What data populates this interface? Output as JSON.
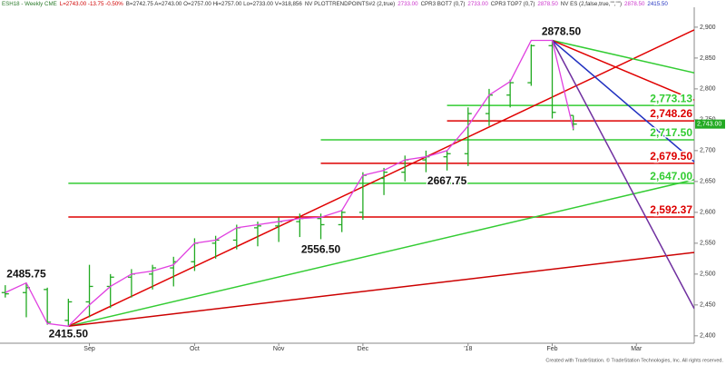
{
  "chart_data": {
    "type": "ohlc",
    "header": [
      {
        "text": "ESH18 - Weekly CME",
        "color": "#2a7a2a"
      },
      {
        "text": "L=2743.00 -13.75 -0.50%",
        "color": "#d00000"
      },
      {
        "text": "B=2742.75 A=2743.00 O=2757.00 Hi=2757.00 Lo=2733.00 V=318,856",
        "color": "#333333"
      },
      {
        "text": "NV PLOTTRENDPOINTS#2 (2,true)",
        "color": "#333333"
      },
      {
        "text": "2733.00",
        "color": "#cc33cc"
      },
      {
        "text": "CPR3 BOT7 (0,7)",
        "color": "#333333"
      },
      {
        "text": "2733.00",
        "color": "#cc33cc"
      },
      {
        "text": "CPR3 TOP7 (0,7)",
        "color": "#333333"
      },
      {
        "text": "2878.50",
        "color": "#cc33cc"
      },
      {
        "text": "NV ES (2,false,true,\"\",\"\")",
        "color": "#333333"
      },
      {
        "text": "2878.50",
        "color": "#cc33cc"
      },
      {
        "text": "2415.50",
        "color": "#2030c0"
      }
    ],
    "footer": "Created with TradeStation. © TradeStation Technologies, Inc. All rights reserved.",
    "xlim": [
      -0.25,
      32.75
    ],
    "xticks": [
      {
        "value": 4,
        "label": "Sep"
      },
      {
        "value": 9,
        "label": "Oct"
      },
      {
        "value": 13,
        "label": "Nov"
      },
      {
        "value": 17,
        "label": "Dec"
      },
      {
        "value": 22,
        "label": "'18"
      },
      {
        "value": 26,
        "label": "Feb"
      },
      {
        "value": 30,
        "label": "Mar"
      }
    ],
    "ylim": [
      2388,
      2944
    ],
    "yticks": [
      {
        "value": 2400,
        "label": "2,400"
      },
      {
        "value": 2450,
        "label": "2,450"
      },
      {
        "value": 2500,
        "label": "2,500"
      },
      {
        "value": 2550,
        "label": "2,550"
      },
      {
        "value": 2600,
        "label": "2,600"
      },
      {
        "value": 2650,
        "label": "2,650"
      },
      {
        "value": 2700,
        "label": "2,700"
      },
      {
        "value": 2750,
        "label": "2,750"
      },
      {
        "value": 2800,
        "label": "2,800"
      },
      {
        "value": 2850,
        "label": "2,850"
      },
      {
        "value": 2900,
        "label": "2,900"
      }
    ],
    "bar_color": "#22aa22",
    "open": [
      2470,
      2470,
      2475,
      2425,
      2455,
      2480,
      2495,
      2500,
      2510,
      2520,
      2550,
      2555,
      2575,
      2578,
      2585,
      2590,
      2580,
      2600,
      2655,
      2665,
      2685,
      2690,
      2695,
      2760,
      2790,
      2810,
      2870,
      2757
    ],
    "high": [
      2482,
      2485.75,
      2478,
      2460,
      2515,
      2500,
      2508,
      2515,
      2528,
      2558,
      2562,
      2580,
      2585,
      2592,
      2598,
      2598,
      2604,
      2665,
      2672,
      2692,
      2700,
      2700,
      2770,
      2800,
      2815,
      2872,
      2878.5,
      2757
    ],
    "low": [
      2462,
      2430,
      2418,
      2415.5,
      2430,
      2445,
      2462,
      2475,
      2480,
      2505,
      2525,
      2540,
      2545,
      2552,
      2560,
      2556.5,
      2568,
      2588,
      2628,
      2650,
      2665,
      2667.75,
      2675,
      2740,
      2770,
      2805,
      2752,
      2733
    ],
    "close": [
      2468,
      2478,
      2422,
      2455,
      2480,
      2495,
      2500,
      2510,
      2520,
      2550,
      2555,
      2575,
      2578,
      2585,
      2590,
      2580,
      2600,
      2660,
      2665,
      2685,
      2690,
      2695,
      2760,
      2790,
      2810,
      2870,
      2762,
      2743
    ],
    "line_color": "#e040e0",
    "line_values": [
      2470,
      2485.75,
      2420,
      2415.5,
      2450,
      2480,
      2500,
      2505,
      2515,
      2550,
      2555,
      2575,
      2580,
      2585,
      2590,
      2592,
      2603,
      2660,
      2668,
      2685,
      2690,
      2700,
      2740,
      2790,
      2812,
      2878.5,
      2878.5,
      2735
    ],
    "last_price": {
      "value": 2743,
      "label": "2,743.00",
      "color": "#22aa22"
    },
    "levels": [
      {
        "value": 2773.13,
        "label": "2,773.13",
        "from_x": 21,
        "color": "#33cc33"
      },
      {
        "value": 2748.26,
        "label": "2,748.26",
        "from_x": 21,
        "color": "#dd0000"
      },
      {
        "value": 2717.5,
        "label": "2,717.50",
        "from_x": 15,
        "color": "#33cc33"
      },
      {
        "value": 2679.5,
        "label": "2,679.50",
        "from_x": 15,
        "color": "#dd0000"
      },
      {
        "value": 2647,
        "label": "2,647.00",
        "from_x": 3,
        "color": "#33cc33"
      },
      {
        "value": 2592.37,
        "label": "2,592.37",
        "from_x": 3,
        "color": "#dd0000"
      }
    ],
    "trendlines": [
      {
        "x": [
          3,
          32.75
        ],
        "values": [
          2415.5,
          2895.6
        ],
        "color": "#e00000"
      },
      {
        "x": [
          3,
          32.75
        ],
        "values": [
          2415.5,
          2653
        ],
        "color": "#33cc33"
      },
      {
        "x": [
          3,
          32.75
        ],
        "values": [
          2415.5,
          2535
        ],
        "color": "#cc0000"
      },
      {
        "x": [
          26,
          32.75
        ],
        "values": [
          2878.5,
          2826
        ],
        "color": "#33cc33"
      },
      {
        "x": [
          26,
          32.75
        ],
        "values": [
          2878.5,
          2782
        ],
        "color": "#e00000"
      },
      {
        "x": [
          26,
          32.75
        ],
        "values": [
          2878.5,
          2682
        ],
        "color": "#2030c0"
      },
      {
        "x": [
          26,
          32.75
        ],
        "values": [
          2878.5,
          2444
        ],
        "color": "#7030a0"
      }
    ],
    "annotations": [
      {
        "x": 26,
        "value": 2878.5,
        "label": "2878.50"
      },
      {
        "x": 1,
        "value": 2485.75,
        "label": "2485.75"
      },
      {
        "x": 3,
        "value": 2415.5,
        "label": "2415.50"
      },
      {
        "x": 21,
        "value": 2667.75,
        "label": "2667.75"
      },
      {
        "x": 15,
        "value": 2556.5,
        "label": "2556.50"
      }
    ]
  }
}
